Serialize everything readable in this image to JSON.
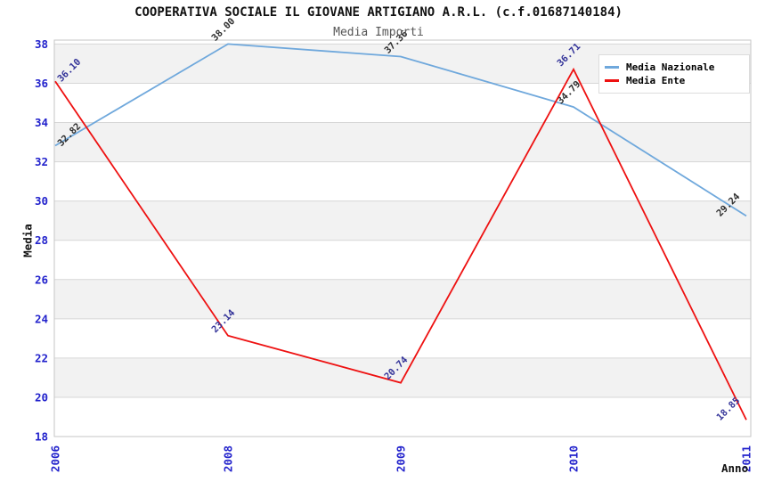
{
  "chart_data": {
    "type": "line",
    "title": "COOPERATIVA SOCIALE IL GIOVANE ARTIGIANO A.R.L. (c.f.01687140184)",
    "subtitle": "Media Importi",
    "xlabel": "Anno",
    "ylabel": "Media",
    "categories": [
      "2006",
      "2008",
      "2009",
      "2010",
      "2011"
    ],
    "series": [
      {
        "name": "Media Nazionale",
        "color": "#6fa8dc",
        "label_color": "#2e2e2e",
        "values": [
          32.82,
          38.0,
          37.36,
          34.79,
          29.24
        ]
      },
      {
        "name": "Media Ente",
        "color": "#ee1111",
        "label_color": "#333399",
        "values": [
          36.1,
          23.14,
          20.74,
          36.71,
          18.85
        ]
      }
    ],
    "ylim": [
      18,
      38.2
    ],
    "yticks": [
      18,
      20,
      22,
      24,
      26,
      28,
      30,
      32,
      34,
      36,
      38
    ],
    "grid": true,
    "value_labels": true,
    "value_label_decimals": 2,
    "legend_position": "top-right",
    "colors": {
      "tick": "#2222cc",
      "grid": "#d7d7d7",
      "border": "#c6c6c6",
      "band": "#f2f2f2",
      "band_alt": "#ffffff",
      "title": "#111111",
      "subtitle": "#555555"
    }
  }
}
